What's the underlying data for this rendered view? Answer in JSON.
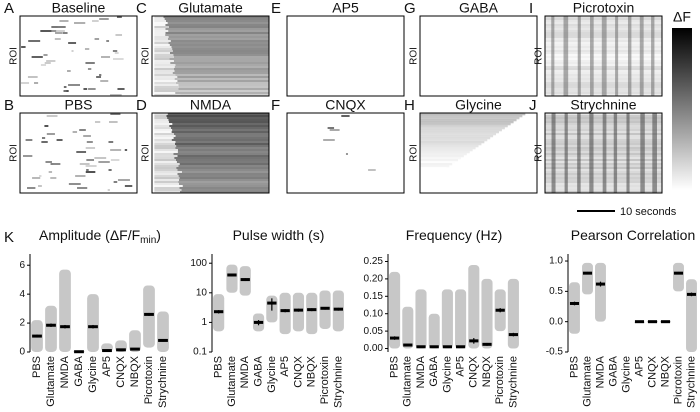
{
  "panels": [
    {
      "letter": "A",
      "title": "Baseline"
    },
    {
      "letter": "C",
      "title": "Glutamate"
    },
    {
      "letter": "E",
      "title": "AP5"
    },
    {
      "letter": "G",
      "title": "GABA"
    },
    {
      "letter": "I",
      "title": "Picrotoxin"
    },
    {
      "letter": "B",
      "title": "PBS"
    },
    {
      "letter": "D",
      "title": "NMDA"
    },
    {
      "letter": "F",
      "title": "CNQX"
    },
    {
      "letter": "H",
      "title": "Glycine"
    },
    {
      "letter": "J",
      "title": "Strychnine"
    }
  ],
  "roi_label": "ROI",
  "colorbar_label": "ΔF",
  "scale_bar_label": "10 seconds",
  "section_letter": "K",
  "chart_data": [
    {
      "type": "dot-range",
      "title": "Amplitude (ΔF/F",
      "title_subscript": "min",
      "title_suffix": ")",
      "categories": [
        "PBS",
        "Glutamate",
        "NMDA",
        "GABA",
        "Glycine",
        "AP5",
        "CNQX",
        "NBQX",
        "Picrotoxin",
        "Strychnine"
      ],
      "values": [
        1.1,
        1.85,
        1.75,
        0.02,
        1.75,
        0.1,
        0.15,
        0.2,
        2.6,
        0.8
      ],
      "errors": [
        0.1,
        0.12,
        0.12,
        0.02,
        0.12,
        0.03,
        0.04,
        0.05,
        0.1,
        0.08
      ],
      "min": [
        0,
        0,
        0,
        0,
        0,
        0,
        0,
        0,
        0.3,
        0
      ],
      "max": [
        2.2,
        3.2,
        5.7,
        0.05,
        4.0,
        0.6,
        0.8,
        1.5,
        4.6,
        2.8
      ],
      "ylim": [
        0,
        6.5
      ],
      "yticks": [
        0,
        2,
        4,
        6
      ],
      "log_scale": false,
      "color": "#999999"
    },
    {
      "type": "dot-range",
      "title": "Pulse width (s)",
      "categories": [
        "PBS",
        "Glutamate",
        "NMDA",
        "GABA",
        "Glycine",
        "AP5",
        "CNQX",
        "NBQX",
        "Picrotoxin",
        "Strychnine"
      ],
      "values": [
        2.3,
        40,
        28,
        1.0,
        4.5,
        2.5,
        2.6,
        2.7,
        3.0,
        2.8
      ],
      "errors": [
        0.3,
        4,
        3,
        0.2,
        2,
        0.3,
        0.3,
        0.3,
        0.3,
        0.3
      ],
      "min": [
        0.5,
        10,
        8,
        0.5,
        1,
        0.4,
        0.5,
        0.4,
        0.6,
        0.5
      ],
      "max": [
        9,
        90,
        80,
        2,
        8,
        10,
        10,
        10,
        12,
        12
      ],
      "ylim": [
        0.1,
        150
      ],
      "yticks": [
        0.1,
        1,
        10,
        100
      ],
      "log_scale": true,
      "color": "#999999"
    },
    {
      "type": "dot-range",
      "title": "Frequency (Hz)",
      "categories": [
        "PBS",
        "Glutamate",
        "NMDA",
        "GABA",
        "Glycine",
        "AP5",
        "CNQX",
        "NBQX",
        "Picrotoxin",
        "Strychnine"
      ],
      "values": [
        0.03,
        0.01,
        0.005,
        0.005,
        0.005,
        0.005,
        0.022,
        0.012,
        0.11,
        0.04
      ],
      "errors": [
        0.005,
        0.003,
        0.002,
        0.002,
        0.002,
        0.002,
        0.008,
        0.004,
        0.006,
        0.005
      ],
      "min": [
        0,
        0,
        0,
        0,
        0,
        0,
        0,
        0,
        0.05,
        0
      ],
      "max": [
        0.22,
        0.12,
        0.17,
        0.1,
        0.17,
        0.17,
        0.24,
        0.2,
        0.17,
        0.2
      ],
      "ylim": [
        -0.01,
        0.26
      ],
      "yticks": [
        {
          "value": 0,
          "label": "0.00"
        },
        {
          "value": 0.05,
          "label": "0.05"
        },
        {
          "value": 0.1,
          "label": "0.10"
        },
        {
          "value": 0.15,
          "label": "0.15"
        },
        {
          "value": 0.2,
          "label": "0.20"
        },
        {
          "value": 0.25,
          "label": "0.25"
        }
      ],
      "log_scale": false,
      "color": "#999999"
    },
    {
      "type": "dot-range",
      "title": "Pearson Correlation",
      "categories": [
        "PBS",
        "Glutamate",
        "NMDA",
        "GABA",
        "Glycine",
        "AP5",
        "CNQX",
        "NBQX",
        "Picrotoxin",
        "Strychnine"
      ],
      "values": [
        0.3,
        0.8,
        0.62,
        null,
        null,
        0,
        0,
        0,
        0.8,
        0.45
      ],
      "errors": [
        0.03,
        0.02,
        0.04,
        null,
        null,
        0.005,
        0.01,
        0.01,
        0.02,
        0.03
      ],
      "min": [
        -0.2,
        0.45,
        0,
        null,
        null,
        0,
        -0.02,
        -0.02,
        0.5,
        -0.5
      ],
      "max": [
        0.65,
        0.97,
        0.97,
        null,
        null,
        0,
        0.02,
        0.02,
        0.97,
        0.7
      ],
      "ylim": [
        -0.5,
        1.05
      ],
      "yticks": [
        {
          "value": -0.5,
          "label": "-0.5"
        },
        {
          "value": 0,
          "label": "0.0"
        },
        {
          "value": 0.5,
          "label": "0.5"
        },
        {
          "value": 1,
          "label": "1.0"
        }
      ],
      "log_scale": false,
      "color": "#999999"
    }
  ]
}
